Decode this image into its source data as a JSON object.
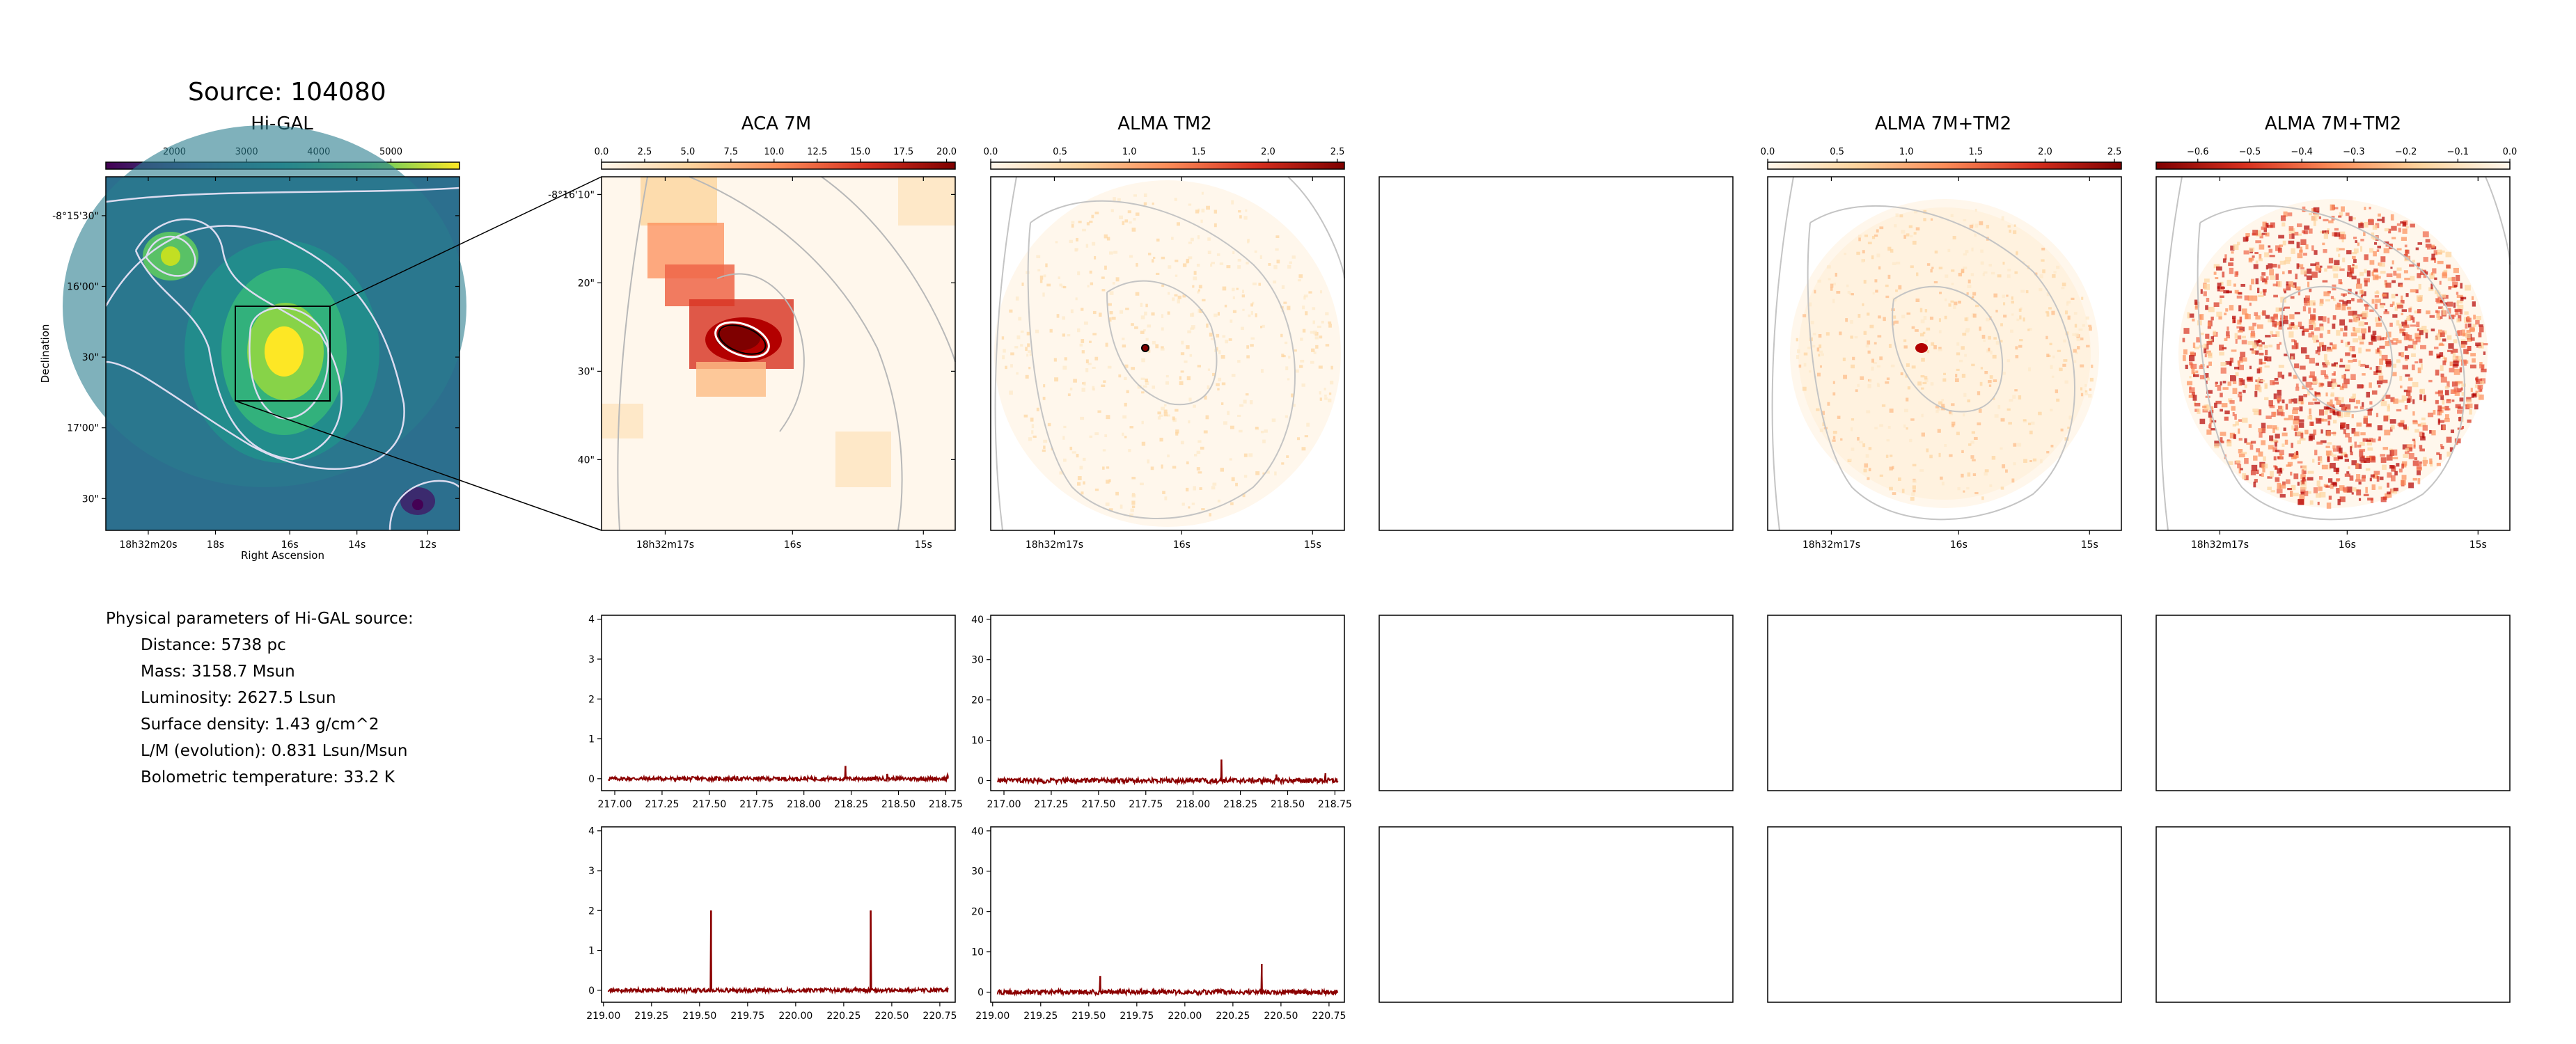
{
  "figure": {
    "title": "Source: 104080",
    "params_heading": "Physical parameters of Hi-GAL source:",
    "params": [
      "Distance: 5738 pc",
      "Mass: 3158.7 Msun",
      "Luminosity: 2627.5 Lsun",
      "Surface density: 1.43 g/cm^2",
      "L/M (evolution): 0.831 Lsun/Msun",
      "Bolometric temperature: 33.2 K"
    ]
  },
  "image_panels": [
    {
      "id": "higal",
      "title": "Hi-GAL",
      "colormap": "viridis",
      "cbar_ticks": [
        "2000",
        "3000",
        "4000",
        "5000"
      ],
      "cbar_range": [
        1050,
        5950
      ],
      "xticks": [
        "18h32m20s",
        "18s",
        "16s",
        "14s",
        "12s"
      ],
      "yticks": [
        "-8°15'30\"",
        "16'00\"",
        "30\"",
        "17'00\"",
        "30\""
      ],
      "xlabel": "Right Ascension",
      "ylabel": "Declination"
    },
    {
      "id": "aca7m",
      "title": "ACA 7M",
      "colormap": "OrRd",
      "cbar_ticks": [
        "0.0",
        "2.5",
        "5.0",
        "7.5",
        "10.0",
        "12.5",
        "15.0",
        "17.5",
        "20.0"
      ],
      "cbar_range": [
        0,
        20.5
      ],
      "xticks": [
        "18h32m17s",
        "16s",
        "15s"
      ],
      "yticks": [
        "-8°16'10\"",
        "20\"",
        "30\"",
        "40\""
      ]
    },
    {
      "id": "tm2",
      "title": "ALMA TM2",
      "colormap": "OrRd",
      "cbar_ticks": [
        "0.0",
        "0.5",
        "1.0",
        "1.5",
        "2.0",
        "2.5"
      ],
      "cbar_range": [
        0,
        2.55
      ],
      "xticks": [
        "18h32m17s",
        "16s",
        "15s"
      ]
    },
    {
      "id": "empty",
      "title": ""
    },
    {
      "id": "combo",
      "title": "ALMA 7M+TM2",
      "colormap": "OrRd",
      "cbar_ticks": [
        "0.0",
        "0.5",
        "1.0",
        "1.5",
        "2.0",
        "2.5"
      ],
      "cbar_range": [
        0,
        2.55
      ],
      "xticks": [
        "18h32m17s",
        "16s",
        "15s"
      ]
    },
    {
      "id": "neg",
      "title": "ALMA 7M+TM2",
      "colormap": "OrRd_r",
      "cbar_ticks": [
        "−0.6",
        "−0.5",
        "−0.4",
        "−0.3",
        "−0.2",
        "−0.1",
        "0.0"
      ],
      "cbar_range": [
        -0.68,
        0
      ],
      "xticks": [
        "18h32m17s",
        "16s",
        "15s"
      ]
    }
  ],
  "chart_data": [
    {
      "type": "line",
      "panel": "spectrum-aca-low",
      "xlim": [
        216.93,
        218.8
      ],
      "ylim": [
        -0.3,
        4.1
      ],
      "xticks": [
        "217.00",
        "217.25",
        "217.50",
        "217.75",
        "218.00",
        "218.25",
        "218.50",
        "218.75"
      ],
      "yticks": [
        "0",
        "1",
        "2",
        "3",
        "4"
      ],
      "series": [
        {
          "color": "#8b0000",
          "noise": 0.05,
          "peaks": [
            {
              "x": 218.22,
              "y": 0.32
            },
            {
              "x": 218.44,
              "y": 0.12
            },
            {
              "x": 218.76,
              "y": 0.1
            }
          ]
        }
      ]
    },
    {
      "type": "line",
      "panel": "spectrum-tm2-low",
      "xlim": [
        216.93,
        218.8
      ],
      "ylim": [
        -2.5,
        41
      ],
      "xticks": [
        "217.00",
        "217.25",
        "217.50",
        "217.75",
        "218.00",
        "218.25",
        "218.50",
        "218.75"
      ],
      "yticks": [
        "0",
        "10",
        "20",
        "30",
        "40"
      ],
      "series": [
        {
          "color": "#8b0000",
          "noise": 0.6,
          "peaks": [
            {
              "x": 218.15,
              "y": 5.2
            },
            {
              "x": 218.44,
              "y": 1.5
            },
            {
              "x": 218.7,
              "y": 1.8
            }
          ]
        }
      ]
    },
    {
      "type": "line",
      "panel": "spectrum-aca-high",
      "xlim": [
        218.99,
        220.83
      ],
      "ylim": [
        -0.3,
        4.1
      ],
      "xticks": [
        "219.00",
        "219.25",
        "219.50",
        "219.75",
        "220.00",
        "220.25",
        "220.50",
        "220.75"
      ],
      "yticks": [
        "0",
        "1",
        "2",
        "3",
        "4"
      ],
      "series": [
        {
          "color": "#8b0000",
          "noise": 0.05,
          "peaks": [
            {
              "x": 219.56,
              "y": 2.0
            },
            {
              "x": 220.39,
              "y": 2.0
            }
          ]
        }
      ]
    },
    {
      "type": "line",
      "panel": "spectrum-tm2-high",
      "xlim": [
        218.99,
        220.83
      ],
      "ylim": [
        -2.5,
        41
      ],
      "xticks": [
        "219.00",
        "219.25",
        "219.50",
        "219.75",
        "220.00",
        "220.25",
        "220.50",
        "220.75"
      ],
      "yticks": [
        "0",
        "10",
        "20",
        "30",
        "40"
      ],
      "series": [
        {
          "color": "#8b0000",
          "noise": 0.6,
          "peaks": [
            {
              "x": 219.56,
              "y": 4.0
            },
            {
              "x": 220.4,
              "y": 7.0
            }
          ]
        }
      ]
    }
  ]
}
